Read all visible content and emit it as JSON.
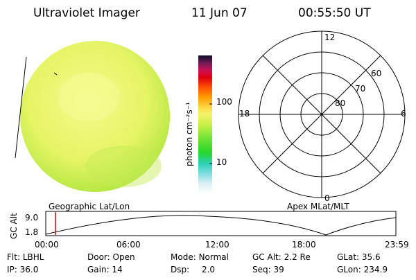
{
  "header": {
    "instrument": "Ultraviolet Imager",
    "date": "11 Jun 07",
    "time": "00:55:50 UT"
  },
  "colorbar": {
    "unit_label": "photon cm⁻²s⁻¹",
    "ticks": [
      "100",
      "10"
    ]
  },
  "polar_plot": {
    "mlt_labels": {
      "top": "12",
      "right": "6",
      "bottom": "0",
      "left": "18"
    },
    "lat_labels": [
      "60",
      "70",
      "80"
    ]
  },
  "timeline": {
    "left_title": "Geographic Lat/Lon",
    "right_title": "Apex MLat/MLT",
    "y_axis_label": "GC Alt",
    "y_ticks": [
      "9.0",
      "1.8"
    ],
    "x_ticks": [
      "00:00",
      "06:00",
      "12:00",
      "18:00",
      "23:59"
    ],
    "current_marker_time": "00:55:50"
  },
  "status": {
    "flt_label": "Flt:",
    "flt_value": "LBHL",
    "door_label": "Door:",
    "door_value": "Open",
    "mode_label": "Mode:",
    "mode_value": "Normal",
    "gcalt_label": "GC Alt:",
    "gcalt_value": "2.2 Re",
    "glat_label": "GLat:",
    "glat_value": "35.6",
    "ip_label": "IP:",
    "ip_value": "36.0",
    "gain_label": "Gain:",
    "gain_value": "14",
    "dsp_label": "Dsp:",
    "dsp_value": "2.0",
    "seq_label": "Seq:",
    "seq_value": "39",
    "glon_label": "GLon:",
    "glon_value": "234.9"
  },
  "colors": {
    "earth_fill": "#e8f56a",
    "earth_rim": "#b7ea4a",
    "marker": "#cc0000"
  }
}
